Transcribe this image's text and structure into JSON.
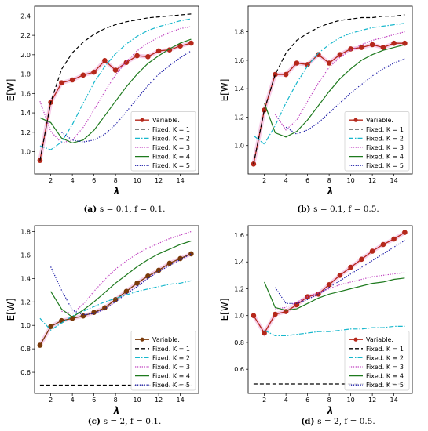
{
  "chart_data": [
    {
      "type": "line",
      "caption": {
        "letter": "(a)",
        "text": "s = 0.1, f = 0.1."
      },
      "xlabel": "λ",
      "ylabel": "E[W]",
      "xlim": [
        0.5,
        15.7
      ],
      "ylim": [
        0.77,
        2.5
      ],
      "xticks": [
        2,
        4,
        6,
        8,
        10,
        12,
        14
      ],
      "yticks": [
        1.0,
        1.2,
        1.4,
        1.6,
        1.8,
        2.0,
        2.2,
        2.4
      ],
      "legend_position": "lower-right",
      "series": [
        {
          "name": "Variable.",
          "style": "marker-line",
          "color": "#b5281b",
          "x": [
            1,
            2,
            3,
            4,
            5,
            6,
            7,
            8,
            9,
            10,
            11,
            12,
            13,
            14,
            15
          ],
          "y": [
            0.91,
            1.51,
            1.71,
            1.74,
            1.79,
            1.82,
            1.94,
            1.84,
            1.92,
            1.99,
            1.98,
            2.04,
            2.05,
            2.09,
            2.12
          ]
        },
        {
          "name": "Fixed. K = 1",
          "style": "dashed",
          "color": "#000000",
          "x": [
            1,
            2,
            3,
            4,
            5,
            6,
            7,
            8,
            9,
            10,
            11,
            12,
            13,
            14,
            15
          ],
          "y": [
            0.91,
            1.51,
            1.85,
            2.02,
            2.13,
            2.21,
            2.27,
            2.31,
            2.34,
            2.36,
            2.38,
            2.39,
            2.4,
            2.41,
            2.42
          ]
        },
        {
          "name": "Fixed. K = 2",
          "style": "dashdot",
          "color": "#17b7cc",
          "x": [
            1,
            2,
            3,
            4,
            5,
            6,
            7,
            8,
            9,
            10,
            11,
            12,
            13,
            14,
            15
          ],
          "y": [
            1.06,
            1.02,
            1.1,
            1.28,
            1.5,
            1.71,
            1.88,
            2.01,
            2.11,
            2.19,
            2.25,
            2.29,
            2.32,
            2.35,
            2.37
          ]
        },
        {
          "name": "Fixed. K = 3",
          "style": "dotted",
          "color": "#bf3fbf",
          "x": [
            1,
            2,
            3,
            4,
            5,
            6,
            7,
            8,
            9,
            10,
            11,
            12,
            13,
            14,
            15
          ],
          "y": [
            1.52,
            1.21,
            1.09,
            1.12,
            1.25,
            1.43,
            1.62,
            1.79,
            1.93,
            2.04,
            2.12,
            2.18,
            2.23,
            2.27,
            2.29
          ]
        },
        {
          "name": "Fixed. K = 4",
          "style": "solid",
          "color": "#1e7a1e",
          "x": [
            1,
            2,
            3,
            4,
            5,
            6,
            7,
            8,
            9,
            10,
            11,
            12,
            13,
            14,
            15
          ],
          "y": [
            1.35,
            1.3,
            1.14,
            1.09,
            1.12,
            1.22,
            1.37,
            1.52,
            1.67,
            1.8,
            1.91,
            1.99,
            2.06,
            2.12,
            2.16
          ]
        },
        {
          "name": "Fixed. K = 5",
          "style": "dotted",
          "color": "#1a1aa6",
          "x": [
            3,
            4,
            5,
            6,
            7,
            8,
            9,
            10,
            11,
            12,
            13,
            14,
            15
          ],
          "y": [
            1.2,
            1.12,
            1.1,
            1.12,
            1.18,
            1.28,
            1.41,
            1.55,
            1.68,
            1.8,
            1.89,
            1.97,
            2.04
          ]
        }
      ]
    },
    {
      "type": "line",
      "caption": {
        "letter": "(b)",
        "text": "s = 0.1, f = 0.5."
      },
      "xlabel": "λ",
      "ylabel": "E[W]",
      "xlim": [
        0.5,
        15.7
      ],
      "ylim": [
        0.8,
        1.98
      ],
      "xticks": [
        2,
        4,
        6,
        8,
        10,
        12,
        14
      ],
      "yticks": [
        1.0,
        1.2,
        1.4,
        1.6,
        1.8
      ],
      "legend_position": "lower-right",
      "series": [
        {
          "name": "Variable.",
          "style": "marker-line",
          "color": "#b5281b",
          "x": [
            1,
            2,
            3,
            4,
            5,
            6,
            7,
            8,
            9,
            10,
            11,
            12,
            13,
            14,
            15
          ],
          "y": [
            0.87,
            1.25,
            1.5,
            1.5,
            1.58,
            1.57,
            1.64,
            1.58,
            1.64,
            1.68,
            1.69,
            1.71,
            1.69,
            1.72,
            1.72
          ]
        },
        {
          "name": "Fixed. K = 1",
          "style": "dashed",
          "color": "#000000",
          "x": [
            1,
            2,
            3,
            4,
            5,
            6,
            7,
            8,
            9,
            10,
            11,
            12,
            13,
            14,
            15
          ],
          "y": [
            0.87,
            1.25,
            1.5,
            1.65,
            1.74,
            1.79,
            1.83,
            1.86,
            1.88,
            1.89,
            1.9,
            1.9,
            1.91,
            1.91,
            1.92
          ]
        },
        {
          "name": "Fixed. K = 2",
          "style": "dashdot",
          "color": "#17b7cc",
          "x": [
            1,
            2,
            3,
            4,
            5,
            6,
            7,
            8,
            9,
            10,
            11,
            12,
            13,
            14,
            15
          ],
          "y": [
            1.07,
            1.01,
            1.14,
            1.3,
            1.44,
            1.56,
            1.65,
            1.71,
            1.76,
            1.79,
            1.81,
            1.83,
            1.84,
            1.85,
            1.86
          ]
        },
        {
          "name": "Fixed. K = 3",
          "style": "dotted",
          "color": "#bf3fbf",
          "x": [
            3,
            4,
            5,
            6,
            7,
            8,
            9,
            10,
            11,
            12,
            13,
            14,
            15
          ],
          "y": [
            1.22,
            1.11,
            1.18,
            1.31,
            1.44,
            1.55,
            1.62,
            1.67,
            1.71,
            1.74,
            1.76,
            1.78,
            1.8
          ]
        },
        {
          "name": "Fixed. K = 4",
          "style": "solid",
          "color": "#1e7a1e",
          "x": [
            2,
            3,
            4,
            5,
            6,
            7,
            8,
            9,
            10,
            11,
            12,
            13,
            14,
            15
          ],
          "y": [
            1.3,
            1.09,
            1.06,
            1.1,
            1.18,
            1.28,
            1.38,
            1.47,
            1.54,
            1.6,
            1.64,
            1.67,
            1.69,
            1.71
          ]
        },
        {
          "name": "Fixed. K = 5",
          "style": "dotted",
          "color": "#1a1aa6",
          "x": [
            4,
            5,
            6,
            7,
            8,
            9,
            10,
            11,
            12,
            13,
            14,
            15
          ],
          "y": [
            1.13,
            1.08,
            1.11,
            1.16,
            1.23,
            1.3,
            1.37,
            1.43,
            1.49,
            1.54,
            1.58,
            1.61
          ]
        }
      ]
    },
    {
      "type": "line",
      "caption": {
        "letter": "(c)",
        "text": "s = 2, f = 0.1."
      },
      "xlabel": "λ",
      "ylabel": "E[W]",
      "xlim": [
        0.5,
        15.7
      ],
      "ylim": [
        0.42,
        1.85
      ],
      "xticks": [
        2,
        4,
        6,
        8,
        10,
        12,
        14
      ],
      "yticks": [
        0.6,
        0.8,
        1.0,
        1.2,
        1.4,
        1.6,
        1.8
      ],
      "legend_position": "lower-right",
      "series": [
        {
          "name": "Variable.",
          "style": "marker-line",
          "color": "#7a3a0a",
          "x": [
            1,
            2,
            3,
            4,
            5,
            6,
            7,
            8,
            9,
            10,
            11,
            12,
            13,
            14,
            15
          ],
          "y": [
            0.83,
            0.99,
            1.04,
            1.06,
            1.08,
            1.11,
            1.15,
            1.22,
            1.29,
            1.36,
            1.42,
            1.47,
            1.53,
            1.57,
            1.61
          ]
        },
        {
          "name": "Fixed. K = 1",
          "style": "dashed",
          "color": "#000000",
          "x": [
            1,
            15
          ],
          "y": [
            0.49,
            0.49
          ]
        },
        {
          "name": "Fixed. K = 2",
          "style": "dashdot",
          "color": "#17b7cc",
          "x": [
            1,
            2,
            3,
            4,
            5,
            6,
            7,
            8,
            9,
            10,
            11,
            12,
            13,
            14,
            15
          ],
          "y": [
            1.06,
            0.96,
            1.02,
            1.08,
            1.12,
            1.16,
            1.2,
            1.23,
            1.26,
            1.29,
            1.31,
            1.33,
            1.35,
            1.36,
            1.38
          ]
        },
        {
          "name": "Fixed. K = 3",
          "style": "dotted",
          "color": "#bf3fbf",
          "x": [
            3,
            4,
            5,
            6,
            7,
            8,
            9,
            10,
            11,
            12,
            13,
            14,
            15
          ],
          "y": [
            1.12,
            1.1,
            1.18,
            1.29,
            1.39,
            1.48,
            1.55,
            1.61,
            1.66,
            1.7,
            1.74,
            1.77,
            1.8
          ]
        },
        {
          "name": "Fixed. K = 4",
          "style": "solid",
          "color": "#1e7a1e",
          "x": [
            2,
            3,
            4,
            5,
            6,
            7,
            8,
            9,
            10,
            11,
            12,
            13,
            14,
            15
          ],
          "y": [
            1.29,
            1.14,
            1.07,
            1.13,
            1.2,
            1.28,
            1.36,
            1.43,
            1.5,
            1.56,
            1.61,
            1.65,
            1.69,
            1.72
          ]
        },
        {
          "name": "Fixed. K = 5",
          "style": "dotted",
          "color": "#1a1aa6",
          "x": [
            2,
            3,
            4,
            5,
            6,
            7,
            8,
            9,
            10,
            11,
            12,
            13,
            14,
            15
          ],
          "y": [
            1.5,
            1.3,
            1.13,
            1.09,
            1.1,
            1.14,
            1.2,
            1.27,
            1.33,
            1.4,
            1.46,
            1.51,
            1.56,
            1.61
          ]
        }
      ]
    },
    {
      "type": "line",
      "caption": {
        "letter": "(d)",
        "text": "s = 2, f = 0.5."
      },
      "xlabel": "λ",
      "ylabel": "E[W]",
      "xlim": [
        0.5,
        15.7
      ],
      "ylim": [
        0.42,
        1.67
      ],
      "xticks": [
        2,
        4,
        6,
        8,
        10,
        12,
        14
      ],
      "yticks": [
        0.6,
        0.8,
        1.0,
        1.2,
        1.4,
        1.6
      ],
      "legend_position": "lower-right",
      "series": [
        {
          "name": "Variable.",
          "style": "marker-line",
          "color": "#b5281b",
          "x": [
            1,
            2,
            3,
            4,
            5,
            6,
            7,
            8,
            9,
            10,
            11,
            12,
            13,
            14,
            15
          ],
          "y": [
            1.0,
            0.87,
            1.01,
            1.03,
            1.08,
            1.14,
            1.16,
            1.23,
            1.3,
            1.36,
            1.42,
            1.48,
            1.53,
            1.57,
            1.62
          ]
        },
        {
          "name": "Fixed. K = 1",
          "style": "dashed",
          "color": "#000000",
          "x": [
            1,
            15
          ],
          "y": [
            0.49,
            0.49
          ]
        },
        {
          "name": "Fixed. K = 2",
          "style": "dashdot",
          "color": "#17b7cc",
          "x": [
            2,
            3,
            4,
            5,
            6,
            7,
            8,
            9,
            10,
            11,
            12,
            13,
            14,
            15
          ],
          "y": [
            0.89,
            0.85,
            0.85,
            0.86,
            0.87,
            0.88,
            0.88,
            0.89,
            0.9,
            0.9,
            0.91,
            0.91,
            0.92,
            0.92
          ]
        },
        {
          "name": "Fixed. K = 3",
          "style": "dotted",
          "color": "#bf3fbf",
          "x": [
            3,
            4,
            5,
            6,
            7,
            8,
            9,
            10,
            11,
            12,
            13,
            14,
            15
          ],
          "y": [
            1.05,
            1.06,
            1.1,
            1.14,
            1.17,
            1.2,
            1.23,
            1.25,
            1.27,
            1.29,
            1.3,
            1.31,
            1.32
          ]
        },
        {
          "name": "Fixed. K = 4",
          "style": "solid",
          "color": "#1e7a1e",
          "x": [
            2,
            3,
            4,
            5,
            6,
            7,
            8,
            9,
            10,
            11,
            12,
            13,
            14,
            15
          ],
          "y": [
            1.25,
            1.06,
            1.04,
            1.05,
            1.09,
            1.13,
            1.16,
            1.18,
            1.2,
            1.22,
            1.24,
            1.25,
            1.27,
            1.28
          ]
        },
        {
          "name": "Fixed. K = 5",
          "style": "dotted",
          "color": "#1a1aa6",
          "x": [
            3,
            4,
            5,
            6,
            7,
            8,
            9,
            10,
            11,
            12,
            13,
            14,
            15
          ],
          "y": [
            1.21,
            1.09,
            1.09,
            1.12,
            1.16,
            1.21,
            1.26,
            1.31,
            1.36,
            1.41,
            1.46,
            1.51,
            1.56
          ]
        }
      ]
    }
  ]
}
